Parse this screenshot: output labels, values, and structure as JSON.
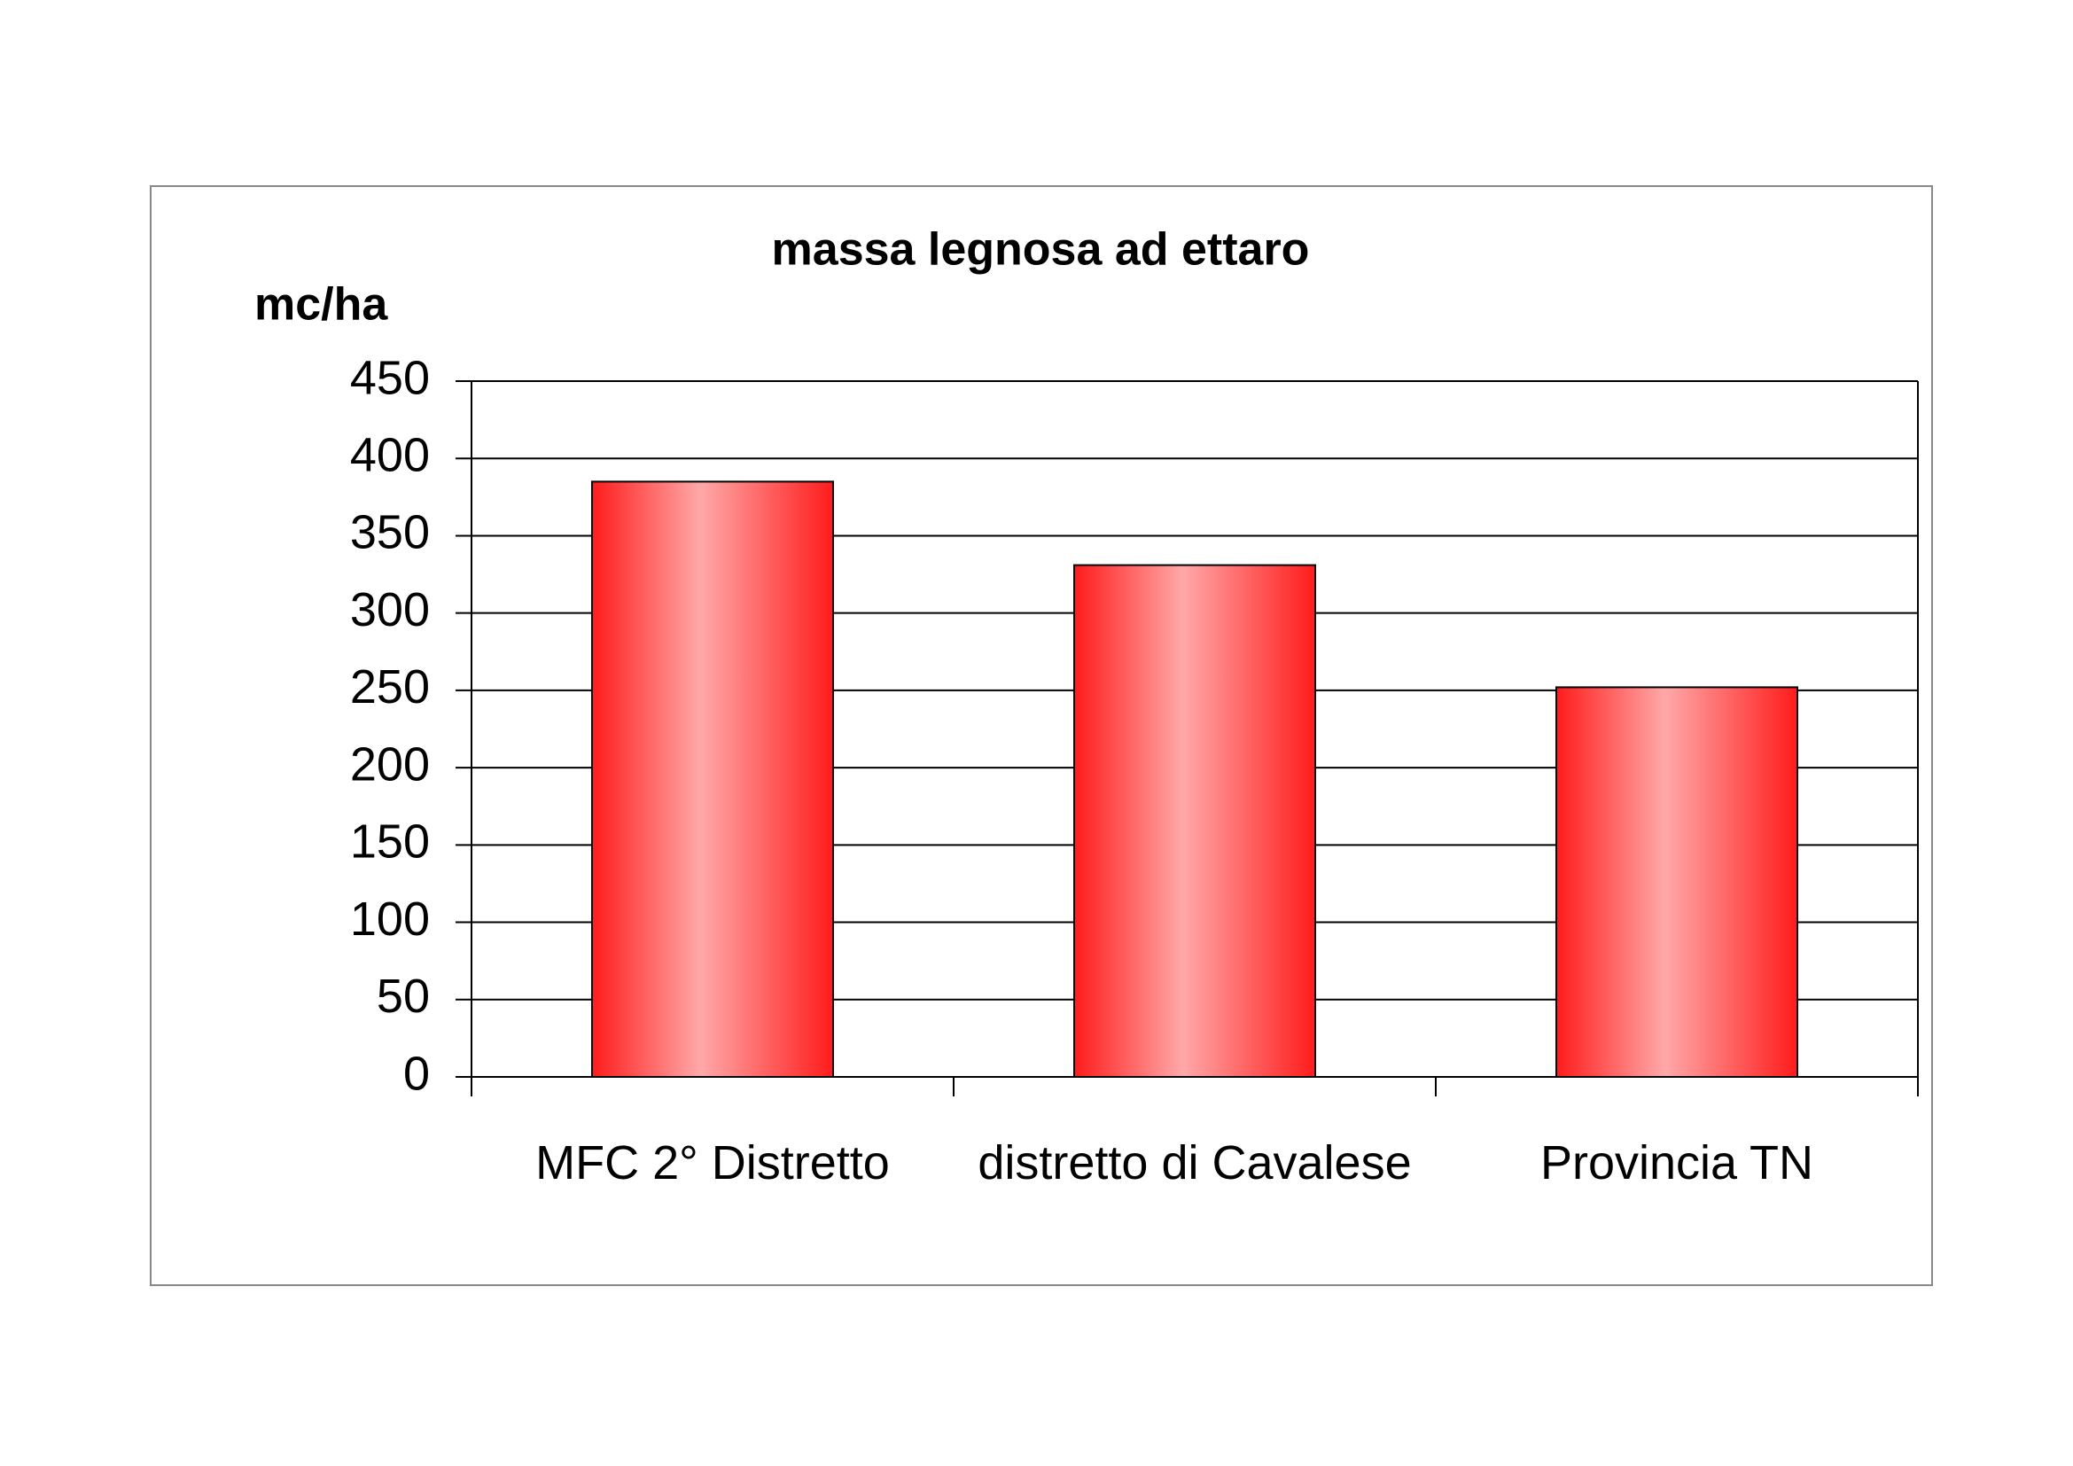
{
  "chart_data": {
    "type": "bar",
    "title": "massa legnosa ad ettaro",
    "y_label": "mc/ha",
    "categories": [
      "MFC 2° Distretto",
      "distretto di Cavalese",
      "Provincia TN"
    ],
    "values": [
      385,
      331,
      252
    ],
    "color": "#ff1c1c",
    "ylim": [
      0,
      450
    ],
    "yticks": [
      0,
      50,
      100,
      150,
      200,
      250,
      300,
      350,
      400,
      450
    ],
    "grid": true
  }
}
